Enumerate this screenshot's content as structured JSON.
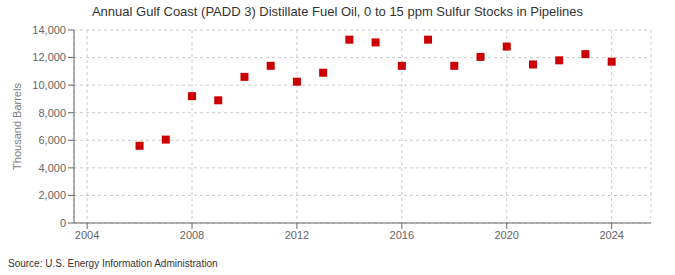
{
  "chart_data": {
    "type": "scatter",
    "title": "Annual Gulf Coast (PADD 3) Distillate Fuel Oil, 0 to 15 ppm Sulfur Stocks in Pipelines",
    "y_label": "Thousand Barrels",
    "annotation": "Source: U.S. Energy Information Administration",
    "x": [
      2006,
      2007,
      2008,
      2009,
      2010,
      2011,
      2012,
      2013,
      2014,
      2015,
      2016,
      2017,
      2018,
      2019,
      2020,
      2021,
      2022,
      2023,
      2024
    ],
    "values": [
      5600,
      6050,
      9200,
      8900,
      10600,
      11400,
      10250,
      10900,
      13300,
      13100,
      11400,
      13300,
      11400,
      12050,
      12800,
      11500,
      11800,
      12250,
      11700
    ],
    "color": "#cc0000",
    "marker": "square",
    "xlim": [
      2003.5,
      2025.5
    ],
    "xticks": [
      2004,
      2008,
      2012,
      2016,
      2020,
      2024
    ],
    "ylim": [
      0,
      14000
    ],
    "yticks": [
      0,
      {
        "value": 2000,
        "label": "2,000"
      },
      {
        "value": 4000,
        "label": "4,000"
      },
      {
        "value": 6000,
        "label": "6,000"
      },
      {
        "value": 8000,
        "label": "8,000"
      },
      {
        "value": 10000,
        "label": "10,000"
      },
      {
        "value": 12000,
        "label": "12,000"
      },
      {
        "value": 14000,
        "label": "14,000"
      }
    ],
    "grid": true
  }
}
